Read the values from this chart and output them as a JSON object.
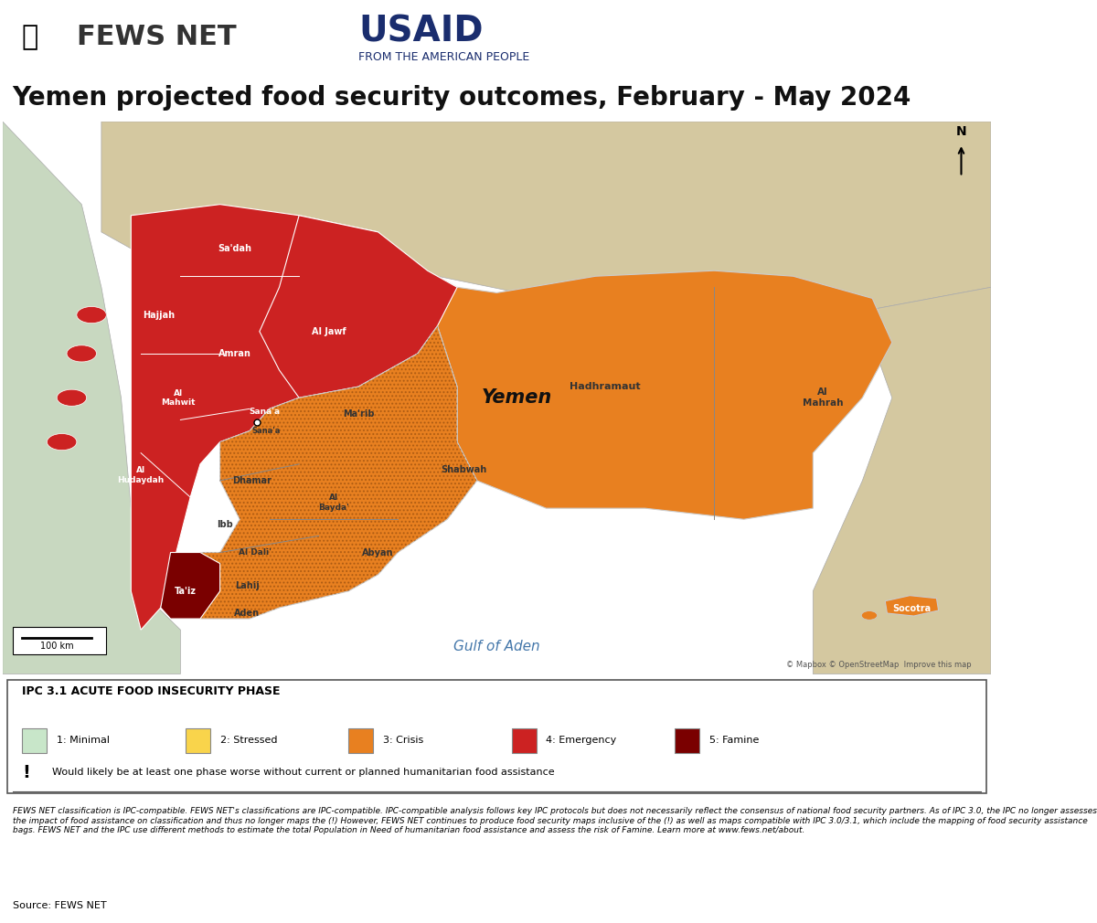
{
  "title": "Yemen projected food security outcomes, February - May 2024",
  "title_fontsize": 20,
  "background_color": "#ffffff",
  "map_background": "#b8d4e8",
  "legend_title": "IPC 3.1 ACUTE FOOD INSECURITY PHASE",
  "legend_items": [
    {
      "label": "1: Minimal",
      "color": "#c8e6c9"
    },
    {
      "label": "2: Stressed",
      "color": "#f9d44b"
    },
    {
      "label": "3: Crisis",
      "color": "#e88020"
    },
    {
      "label": "4: Emergency",
      "color": "#cc2222"
    },
    {
      "label": "5: Famine",
      "color": "#7a0000"
    }
  ],
  "warning_text": "Would likely be at least one phase worse without current or planned humanitarian food assistance",
  "disclaimer": "FEWS NET classification is IPC-compatible. FEWS NET's classifications are IPC-compatible. IPC-compatible analysis follows key IPC protocols but does not necessarily reflect the consensus of national food security partners. As of IPC 3.0, the IPC no longer assesses the impact of food assistance on classification and thus no longer maps the (!) However, FEWS NET continues to produce food security maps inclusive of the (!) as well as maps compatible with IPC 3.0/3.1, which include the mapping of food security assistance bags. FEWS NET and the IPC use different methods to estimate the total Population in Need of humanitarian food assistance and assess the risk of Famine. Learn more at www.fews.net/about.",
  "source": "Source: FEWS NET",
  "colors": {
    "emergency": "#cc2222",
    "crisis": "#e88020",
    "crisis_dotted": "#e88020",
    "famine": "#7a0000",
    "stressed": "#f9d44b",
    "minimal": "#c8e6c9"
  }
}
